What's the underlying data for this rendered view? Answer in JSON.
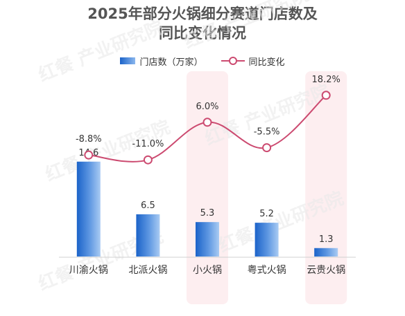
{
  "title_line1": "2025年部分火锅细分赛道门店数及",
  "title_line2": "同比变化情况",
  "watermark": "红餐 产业研究院",
  "colors": {
    "bar_dark": "#1b63c9",
    "bar_light": "#9fc3f0",
    "line": "#cc4a70",
    "highlight_band": "#fdeef0",
    "axis": "#d0d0d0",
    "text": "#333333"
  },
  "chart_data": {
    "type": "bar",
    "categories": [
      "川渝火锅",
      "北派火锅",
      "小火锅",
      "粤式火锅",
      "云贵火锅"
    ],
    "series": [
      {
        "name": "门店数（万家）",
        "type": "bar",
        "values": [
          14.6,
          6.5,
          5.3,
          5.2,
          1.3
        ],
        "labels": [
          "14.6",
          "6.5",
          "5.3",
          "5.2",
          "1.3"
        ]
      },
      {
        "name": "同比变化",
        "type": "line",
        "values": [
          -8.8,
          -11.0,
          6.0,
          -5.5,
          18.2
        ],
        "labels": [
          "-8.8%",
          "-11.0%",
          "6.0%",
          "-5.5%",
          "18.2%"
        ]
      }
    ],
    "highlighted_categories": [
      "小火锅",
      "云贵火锅"
    ],
    "legend_position": "top",
    "grid": false
  }
}
